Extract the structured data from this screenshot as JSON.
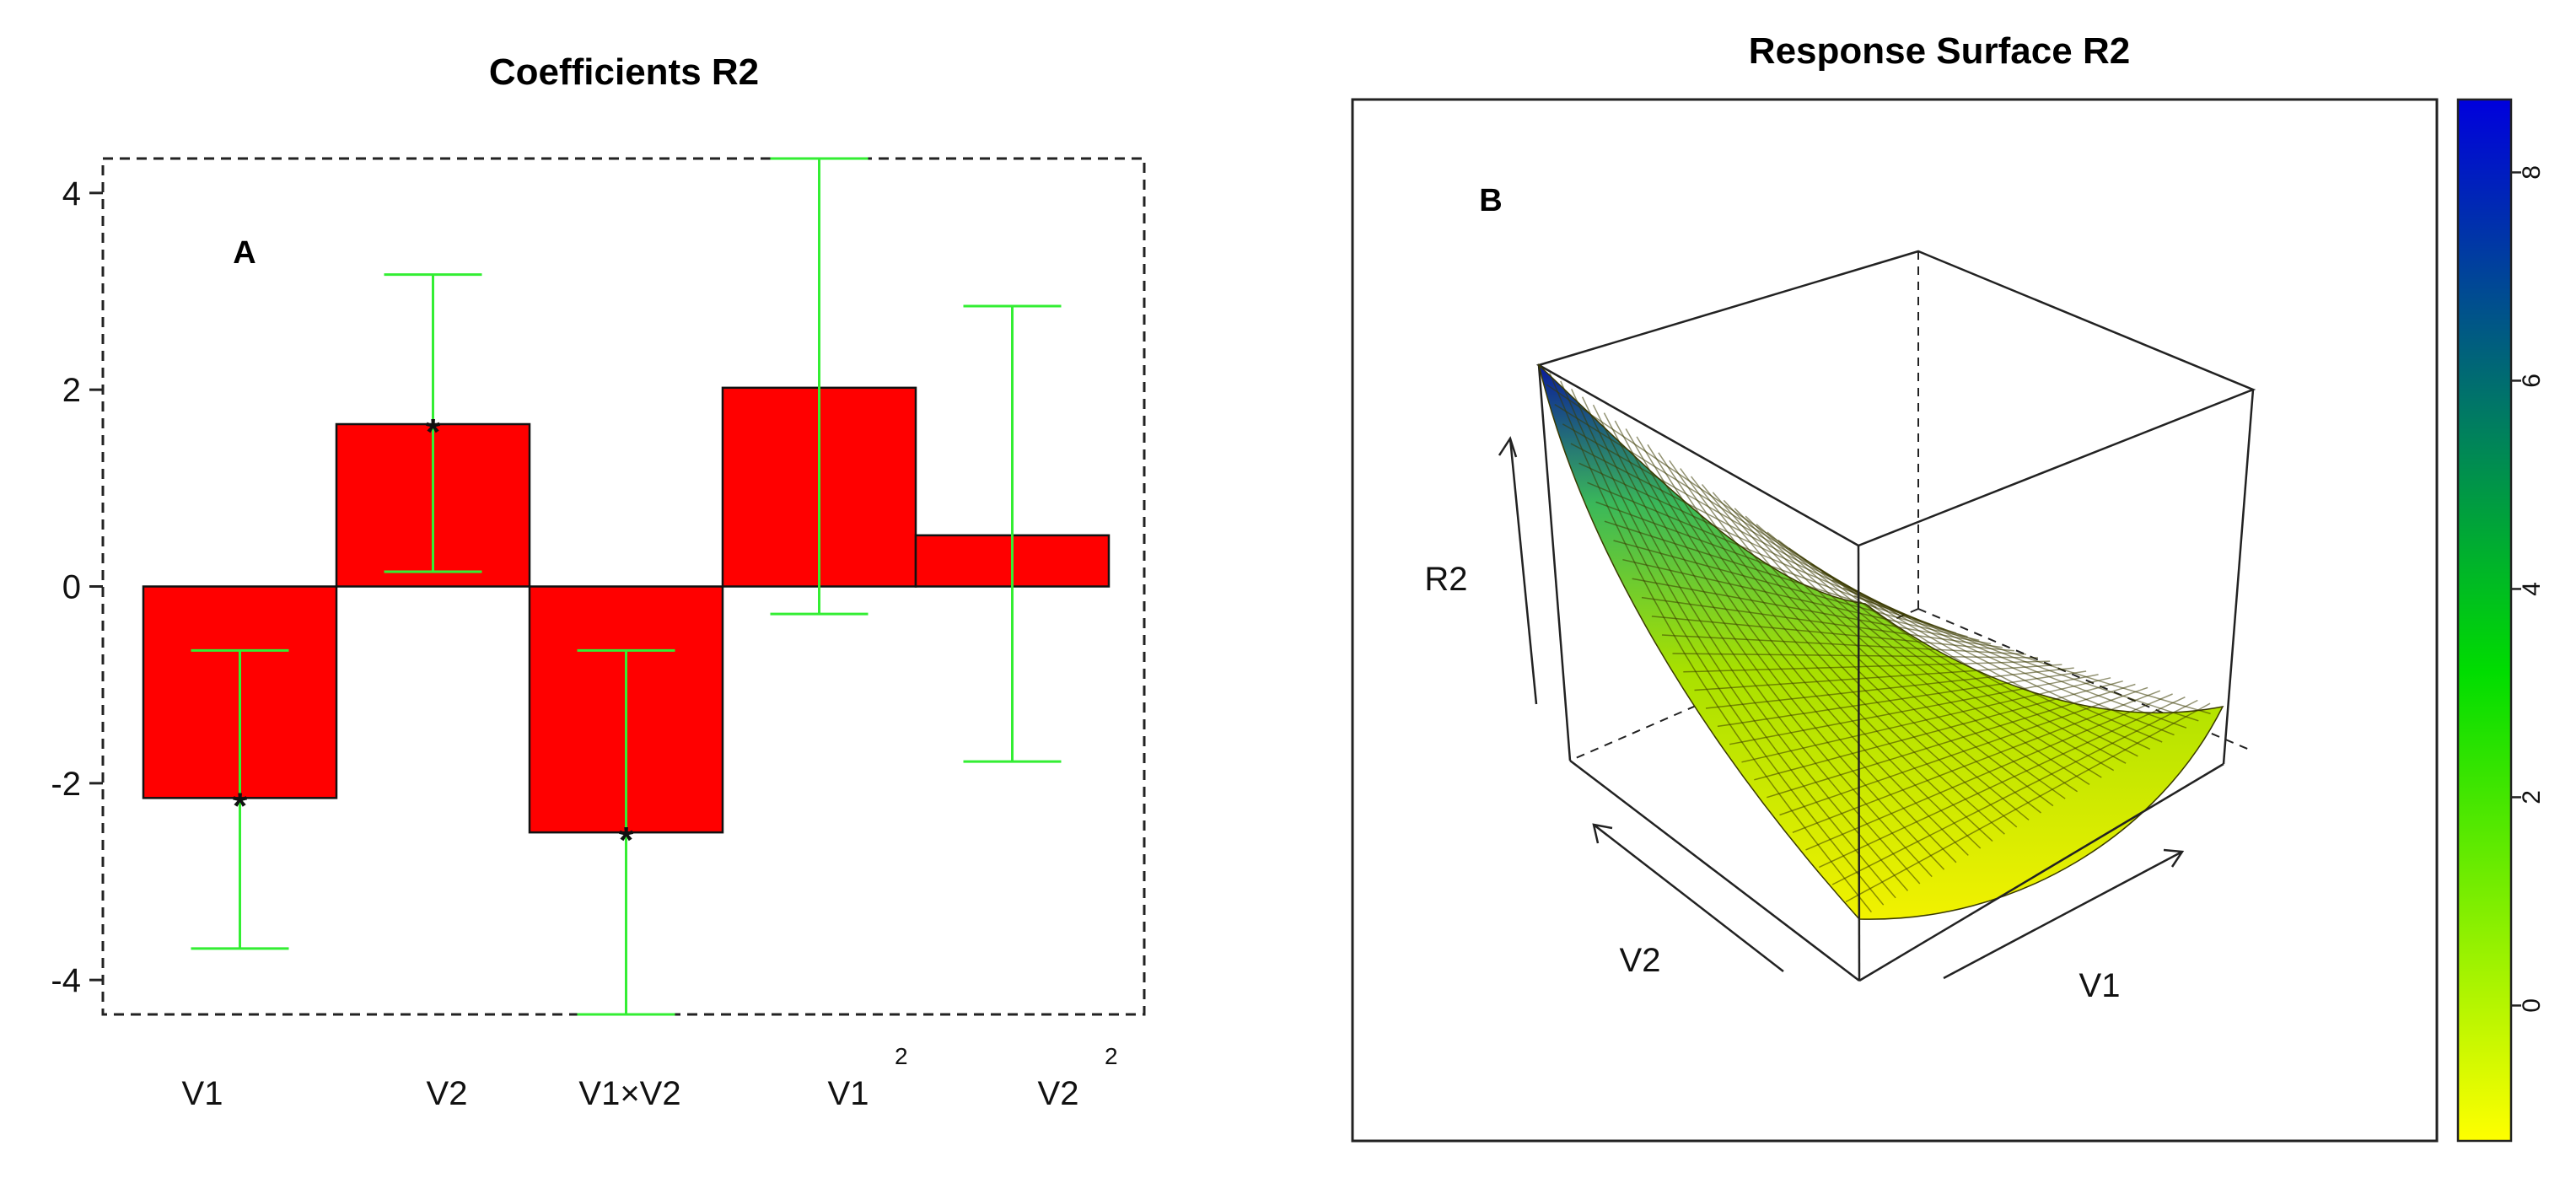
{
  "chart_data": [
    {
      "type": "bar",
      "panel_label": "A",
      "title": "Coefficients R2",
      "categories": [
        "V1",
        "V2",
        "V1×V2",
        "V1",
        "V2"
      ],
      "category_superscripts": [
        "",
        "",
        "",
        "2",
        "2"
      ],
      "values": [
        -2.15,
        1.65,
        -2.5,
        2.02,
        0.52
      ],
      "error_low": [
        -3.68,
        0.15,
        -4.35,
        -0.28,
        -1.78
      ],
      "error_high": [
        -0.65,
        3.17,
        -0.65,
        4.35,
        2.85
      ],
      "significant": [
        true,
        true,
        true,
        false,
        false
      ],
      "significance_marker": "*",
      "ylim": [
        -4.35,
        4.35
      ],
      "yticks": [
        -4,
        -2,
        0,
        2,
        4
      ],
      "ytick_labels": [
        "-4",
        "-2",
        "0",
        "2",
        "4"
      ],
      "bar_color": "#ff0000",
      "errorbar_color": "#33ee33",
      "frame": "dashed"
    },
    {
      "type": "surface",
      "panel_label": "B",
      "title": "Response Surface R2",
      "xlabel": "V1",
      "ylabel": "V2",
      "zlabel": "R2",
      "colorbar": {
        "range": [
          -1.3,
          8.7
        ],
        "ticks": [
          0,
          2,
          4,
          6,
          8
        ],
        "tick_labels": [
          "0",
          "2",
          "4",
          "6",
          "8"
        ],
        "colors": [
          "#ffff00",
          "#00dd00",
          "#0000dd"
        ]
      }
    }
  ]
}
